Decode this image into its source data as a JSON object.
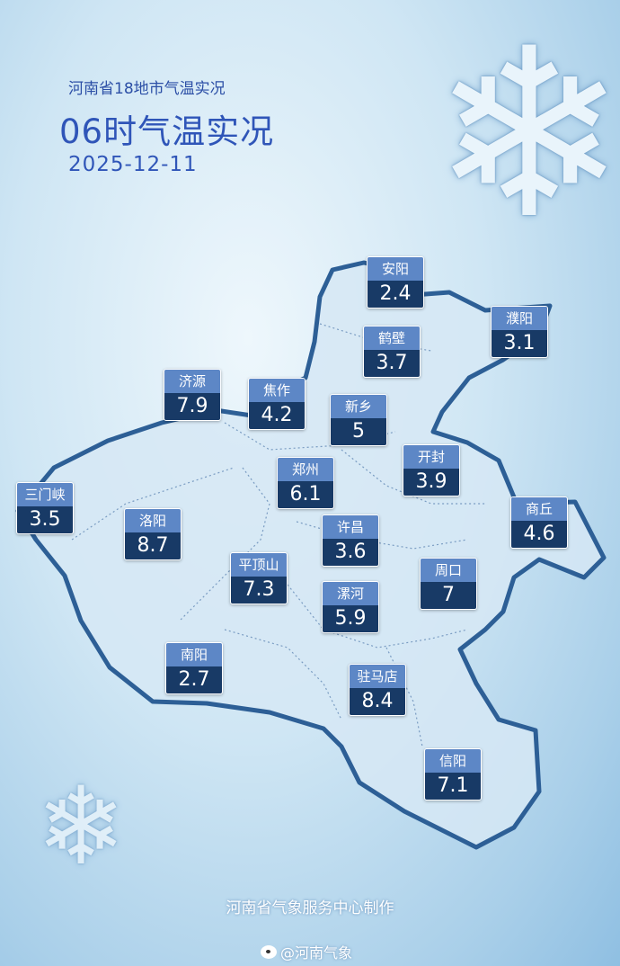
{
  "header": {
    "subtitle": "河南省18地市气温实况",
    "title": "06时气温实况",
    "date": "2025-12-11"
  },
  "cities": [
    {
      "name": "安阳",
      "temp": "2.4"
    },
    {
      "name": "濮阳",
      "temp": "3.1"
    },
    {
      "name": "鹤壁",
      "temp": "3.7"
    },
    {
      "name": "济源",
      "temp": "7.9"
    },
    {
      "name": "焦作",
      "temp": "4.2"
    },
    {
      "name": "新乡",
      "temp": "5"
    },
    {
      "name": "开封",
      "temp": "3.9"
    },
    {
      "name": "郑州",
      "temp": "6.1"
    },
    {
      "name": "三门峡",
      "temp": "3.5"
    },
    {
      "name": "商丘",
      "temp": "4.6"
    },
    {
      "name": "洛阳",
      "temp": "8.7"
    },
    {
      "name": "许昌",
      "temp": "3.6"
    },
    {
      "name": "平顶山",
      "temp": "7.3"
    },
    {
      "name": "周口",
      "temp": "7"
    },
    {
      "name": "漯河",
      "temp": "5.9"
    },
    {
      "name": "南阳",
      "temp": "2.7"
    },
    {
      "name": "驻马店",
      "temp": "8.4"
    },
    {
      "name": "信阳",
      "temp": "7.1"
    }
  ],
  "colors": {
    "label_top": "#5d87c6",
    "label_bottom": "#183a66",
    "title": "#2f55b8",
    "map_fill": "#d6e7f5",
    "map_border": "#2d5f96"
  },
  "footer": {
    "producer": "河南省气象服务中心制作",
    "weibo": "@河南气象",
    "weibo_icon": "weibo-icon"
  }
}
